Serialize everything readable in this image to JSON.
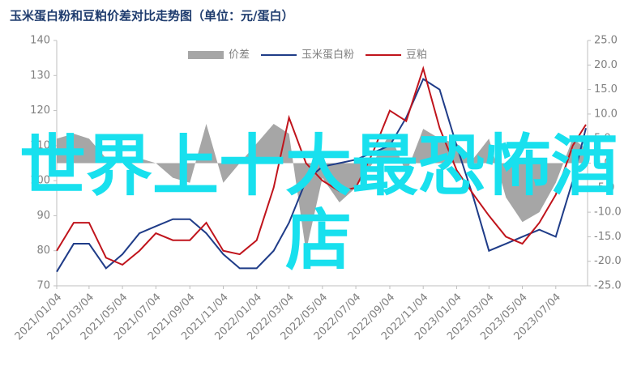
{
  "chart_data": {
    "type": "line",
    "title": "玉米蛋白粉和豆粕价差对比走势图（单位：元/蛋白）",
    "overlay_text": "世界上十大最恐怖酒店",
    "x": [
      "2021/01/04",
      "2021/02/04",
      "2021/03/04",
      "2021/04/04",
      "2021/05/04",
      "2021/06/04",
      "2021/07/04",
      "2021/08/04",
      "2021/09/04",
      "2021/10/04",
      "2021/11/04",
      "2021/12/04",
      "2022/01/04",
      "2022/02/04",
      "2022/03/04",
      "2022/04/04",
      "2022/05/04",
      "2022/06/04",
      "2022/07/04",
      "2022/08/04",
      "2022/09/04",
      "2022/10/04",
      "2022/11/04",
      "2022/12/04",
      "2023/01/04",
      "2023/02/04",
      "2023/03/04",
      "2023/04/04",
      "2023/05/04",
      "2023/06/04",
      "2023/07/04",
      "2023/08/04",
      "2023/08/28"
    ],
    "xlim": [
      "2021/01/04",
      "2023/08/31"
    ],
    "xticks": [
      "2021/01/04",
      "2021/03/04",
      "2021/05/04",
      "2021/07/04",
      "2021/09/04",
      "2021/11/04",
      "2022/01/04",
      "2022/03/04",
      "2022/05/04",
      "2022/07/04",
      "2022/09/04",
      "2022/11/04",
      "2023/01/04",
      "2023/03/04",
      "2023/05/04",
      "2023/07/04"
    ],
    "ylim": [
      70,
      140
    ],
    "yticks": [
      70,
      80,
      90,
      100,
      110,
      120,
      130,
      140
    ],
    "y2lim": [
      -25,
      25
    ],
    "y2ticks": [
      {
        "value": -25,
        "label": "-25.0"
      },
      {
        "value": -20,
        "label": "-20.0"
      },
      {
        "value": -15,
        "label": "-15.0"
      },
      {
        "value": -10,
        "label": "-10.0"
      },
      {
        "value": -5,
        "label": "-5.0"
      },
      {
        "value": 0,
        "label": "0.0"
      },
      {
        "value": 5,
        "label": "5.0"
      },
      {
        "value": 10,
        "label": "10.0"
      },
      {
        "value": 15,
        "label": "15.0"
      },
      {
        "value": 20,
        "label": "20.0"
      },
      {
        "value": 25,
        "label": "25.0"
      }
    ],
    "series": [
      {
        "name": "价差",
        "type": "area",
        "axis": "y2",
        "color": "#a6a6a6",
        "values": [
          5,
          6,
          5,
          1,
          0,
          1,
          0,
          -3,
          -4,
          8,
          -4,
          0,
          4,
          8,
          6,
          -18,
          -3,
          -8,
          -5,
          0,
          6,
          -2,
          7,
          5,
          4,
          1,
          5,
          -7,
          -12,
          -10,
          -4,
          5,
          3
        ]
      },
      {
        "name": "玉米蛋白粉",
        "type": "line",
        "color": "#1f3c88",
        "values": [
          74,
          82,
          82,
          75,
          79,
          85,
          87,
          89,
          89,
          85,
          79,
          75,
          75,
          80,
          88,
          100,
          104,
          105,
          106,
          108,
          110,
          118,
          129,
          126,
          110,
          95,
          80,
          82,
          84,
          86,
          84,
          100,
          115
        ]
      },
      {
        "name": "豆粕",
        "type": "line",
        "color": "#c0141c",
        "values": [
          80,
          88,
          88,
          78,
          76,
          80,
          85,
          83,
          83,
          88,
          80,
          79,
          83,
          98,
          118,
          105,
          100,
          97,
          98,
          108,
          120,
          117,
          132,
          115,
          103,
          96,
          90,
          84,
          82,
          88,
          96,
          110,
          116
        ]
      }
    ]
  }
}
